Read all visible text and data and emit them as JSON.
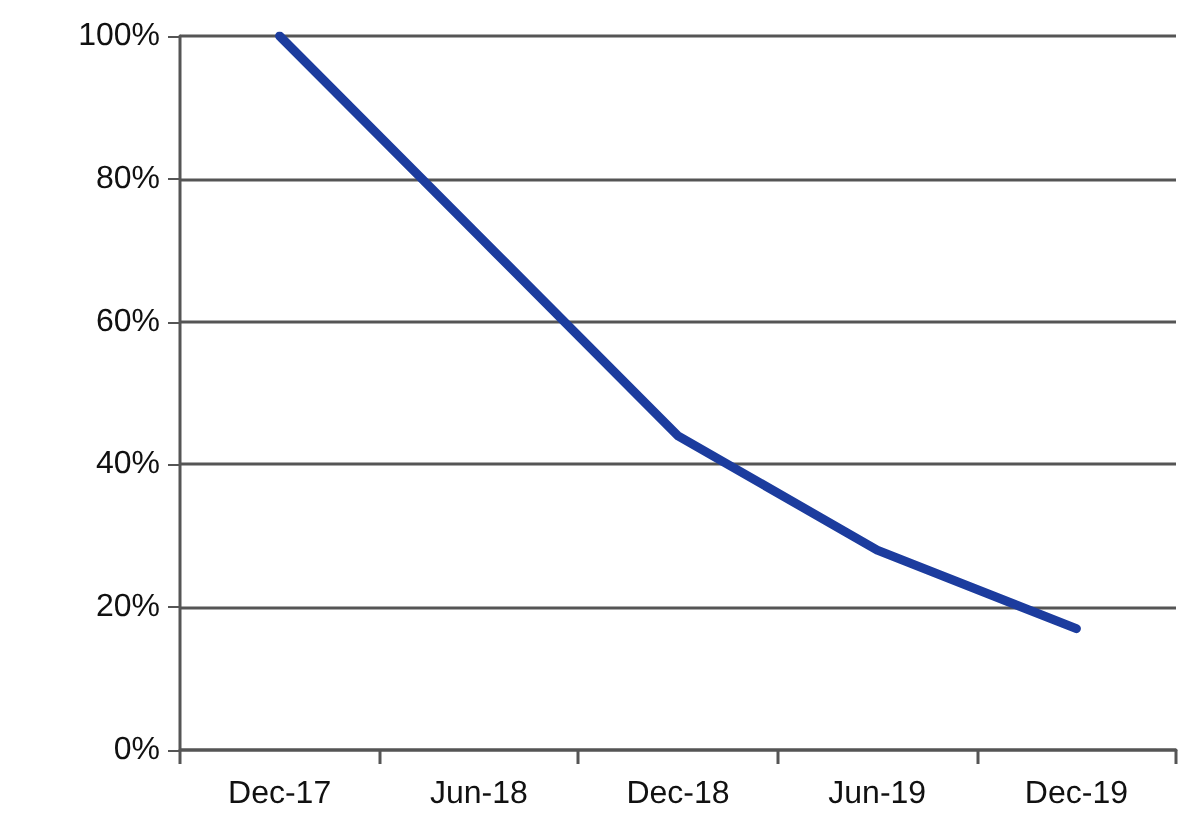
{
  "chart_data": {
    "type": "line",
    "categories": [
      "Dec-17",
      "Jun-18",
      "Dec-18",
      "Jun-19",
      "Dec-19"
    ],
    "series": [
      {
        "color": "#1c3c9e",
        "values": [
          100,
          72,
          44,
          28,
          17
        ]
      }
    ],
    "ylim": [
      0,
      100
    ],
    "yticks": [
      {
        "value": 0,
        "label": "0%"
      },
      {
        "value": 20,
        "label": "20%"
      },
      {
        "value": 40,
        "label": "40%"
      },
      {
        "value": 60,
        "label": "60%"
      },
      {
        "value": 80,
        "label": "80%"
      },
      {
        "value": 100,
        "label": "100%"
      }
    ],
    "grid": "y",
    "marker": "none",
    "line_style": "solid"
  }
}
